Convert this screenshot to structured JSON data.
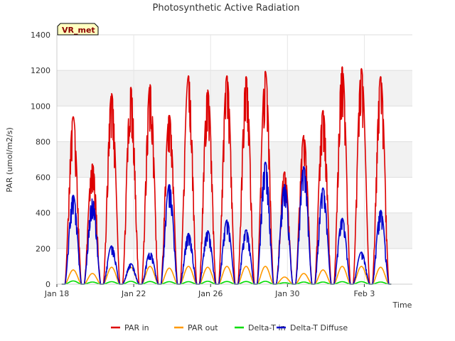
{
  "chart_data": {
    "type": "line",
    "title": "Photosynthetic Active Radiation",
    "xlabel": "Time",
    "ylabel": "PAR (umol/m2/s)",
    "ylim": [
      0,
      1400
    ],
    "xlim": [
      0,
      18.5
    ],
    "x_units": "days since Jan 18",
    "y_ticks": [
      0,
      200,
      400,
      600,
      800,
      1000,
      1200,
      1400
    ],
    "x_ticks": [
      {
        "value": 0,
        "label": "Jan 18"
      },
      {
        "value": 4,
        "label": "Jan 22"
      },
      {
        "value": 8,
        "label": "Jan 26"
      },
      {
        "value": 12,
        "label": "Jan 30"
      },
      {
        "value": 16,
        "label": "Feb 3"
      }
    ],
    "grid": true,
    "band_fill": "#f2f2f2",
    "badge": "VR_met",
    "legend_position": "bottom-center",
    "series": [
      {
        "name": "PAR in",
        "color": "#dd0000",
        "peaks": [
          940,
          675,
          1070,
          1105,
          1120,
          950,
          1170,
          1090,
          1170,
          1165,
          1195,
          630,
          835,
          975,
          1220,
          1210,
          1165
        ]
      },
      {
        "name": "PAR out",
        "color": "#ff9900",
        "peaks": [
          80,
          60,
          95,
          95,
          100,
          90,
          100,
          95,
          100,
          100,
          100,
          40,
          60,
          80,
          100,
          100,
          95
        ]
      },
      {
        "name": "Delta-T in",
        "color": "#00dd00",
        "peaks": [
          18,
          12,
          14,
          16,
          15,
          14,
          14,
          16,
          15,
          15,
          16,
          8,
          12,
          12,
          14,
          14,
          12
        ]
      },
      {
        "name": "Delta-T Diffuse",
        "color": "#0000cc",
        "peaks": [
          500,
          480,
          215,
          115,
          180,
          560,
          285,
          300,
          360,
          305,
          685,
          560,
          660,
          540,
          370,
          180,
          415
        ]
      }
    ]
  }
}
